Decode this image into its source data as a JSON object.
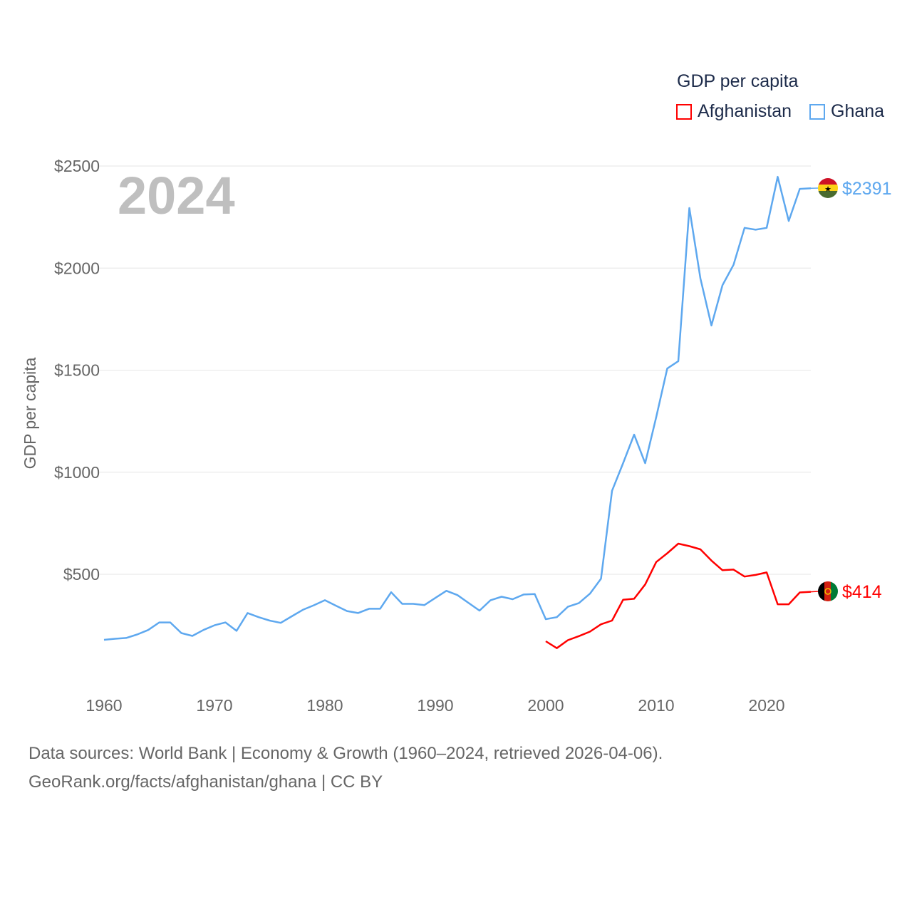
{
  "chart_data": {
    "type": "line",
    "title": "GDP per capita",
    "year_label": "2024",
    "xlabel": "",
    "ylabel": "GDP per capita",
    "xlim": [
      1960,
      2024
    ],
    "ylim": [
      0,
      2500
    ],
    "x_ticks": [
      "1960",
      "1970",
      "1980",
      "1990",
      "2000",
      "2010",
      "2020"
    ],
    "y_ticks": [
      "$500",
      "$1000",
      "$1500",
      "$2000",
      "$2500"
    ],
    "y_tick_values": [
      500,
      1000,
      1500,
      2000,
      2500
    ],
    "grid": true,
    "legend_placement": "top-right",
    "series": [
      {
        "name": "Afghanistan",
        "color": "#ff0000",
        "end_label": "$414",
        "start_year": 2000,
        "values": [
          172,
          138,
          177,
          197,
          219,
          255,
          273,
          375,
          380,
          450,
          560,
          603,
          650,
          638,
          622,
          567,
          520,
          523,
          489,
          497,
          509,
          353,
          353,
          411,
          414
        ]
      },
      {
        "name": "Ghana",
        "color": "#5ea8ef",
        "end_label": "$2391",
        "start_year": 1960,
        "values": [
          179,
          184,
          188,
          205,
          227,
          264,
          264,
          212,
          198,
          227,
          250,
          264,
          223,
          310,
          290,
          273,
          262,
          294,
          326,
          348,
          373,
          346,
          320,
          310,
          331,
          331,
          412,
          355,
          355,
          349,
          384,
          419,
          398,
          360,
          322,
          373,
          390,
          378,
          401,
          403,
          280,
          290,
          341,
          359,
          405,
          478,
          909,
          1044,
          1184,
          1044,
          1270,
          1508,
          1544,
          2294,
          1950,
          1719,
          1916,
          2016,
          2197,
          2188,
          2197,
          2447,
          2231,
          2388,
          2391
        ]
      }
    ]
  },
  "footer": {
    "line1": "Data sources: World Bank | Economy & Growth (1960–2024, retrieved 2026-04-06).",
    "line2": "GeoRank.org/facts/afghanistan/ghana | CC BY"
  }
}
